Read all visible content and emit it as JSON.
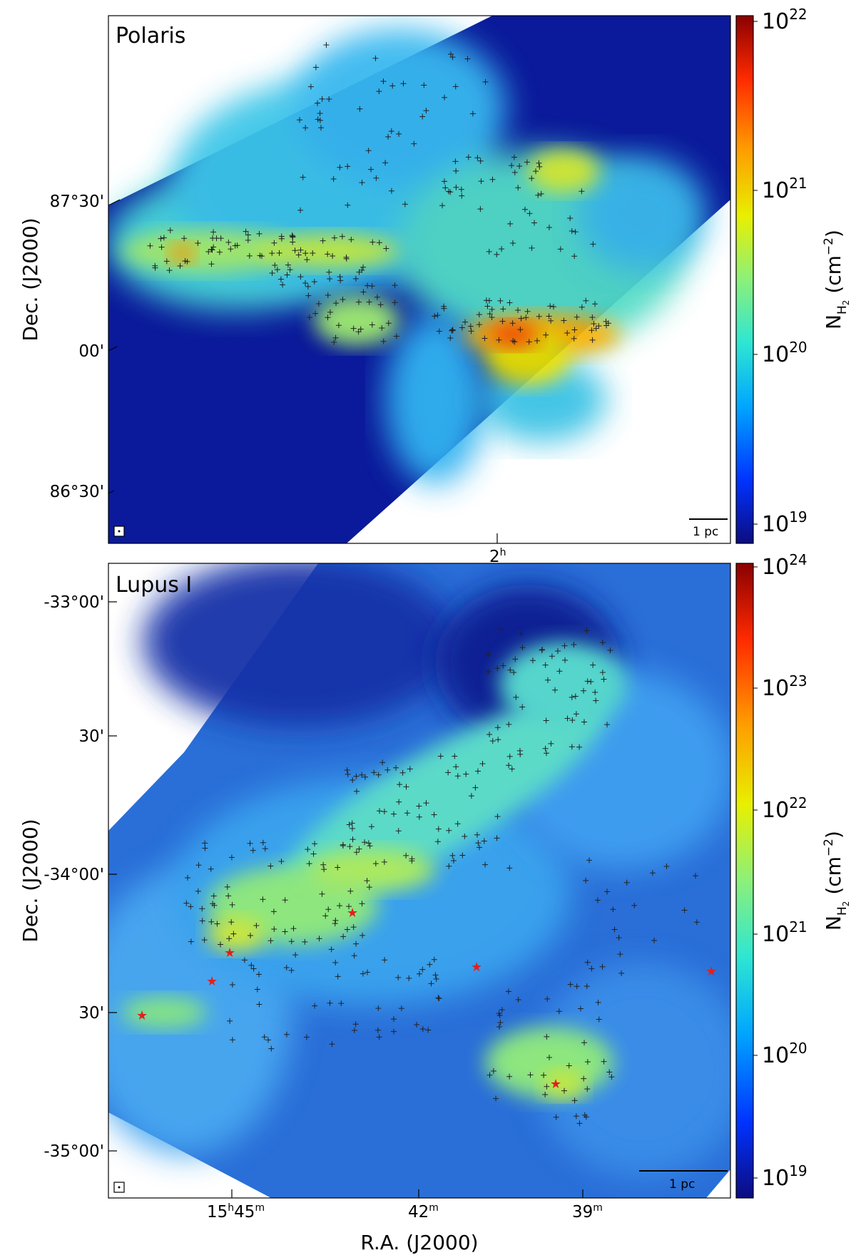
{
  "figure": {
    "panels": [
      {
        "name": "Polaris",
        "colorbar_label": "N_H2 (cm^-2)",
        "colorbar_ticks": [
          "10^19",
          "10^20",
          "10^21",
          "10^22"
        ],
        "ytick_labels": [
          "87°30'",
          "00'",
          "86°30'"
        ],
        "xtick_labels": [
          "2h"
        ],
        "ylabel": "Dec. (J2000)",
        "scalebar_label": "1 pc"
      },
      {
        "name": "Lupus I",
        "colorbar_label": "N_H2 (cm^-2)",
        "colorbar_ticks": [
          "10^19",
          "10^20",
          "10^21",
          "10^22",
          "10^23",
          "10^24"
        ],
        "ytick_labels": [
          "-33°00'",
          "30'",
          "-34°00'",
          "30'",
          "-35°00'"
        ],
        "xtick_labels": [
          "15h45m",
          "42m",
          "39m"
        ],
        "ylabel": "Dec. (J2000)",
        "xlabel": "R.A. (J2000)",
        "scalebar_label": "1 pc"
      }
    ],
    "colormap": [
      "#0c0c80",
      "#0033ff",
      "#00a6ff",
      "#2ee6d2",
      "#8cf07a",
      "#e8f000",
      "#ff9a00",
      "#ff2a00",
      "#8a0000"
    ]
  },
  "chart_data": [
    {
      "type": "heatmap",
      "title": "Polaris",
      "ylabel": "Dec. (J2000)",
      "yticks": [
        "87°30'",
        "00'",
        "86°30'"
      ],
      "xticks": [
        "2h"
      ],
      "colorbar": {
        "label": "N_H2 (cm^-2)",
        "scale": "log",
        "range": [
          1e+19,
          1e+22
        ]
      },
      "scalebar": "1 pc",
      "markers": "black + sources along filaments"
    },
    {
      "type": "heatmap",
      "title": "Lupus I",
      "xlabel": "R.A. (J2000)",
      "ylabel": "Dec. (J2000)",
      "yticks": [
        "-33°00'",
        "30'",
        "-34°00'",
        "30'",
        "-35°00'"
      ],
      "xticks": [
        "15h45m",
        "42m",
        "39m"
      ],
      "colorbar": {
        "label": "N_H2 (cm^-2)",
        "scale": "log",
        "range": [
          1e+19,
          1e+24
        ]
      },
      "scalebar": "1 pc",
      "markers": "black + sources and red star YSOs"
    }
  ]
}
